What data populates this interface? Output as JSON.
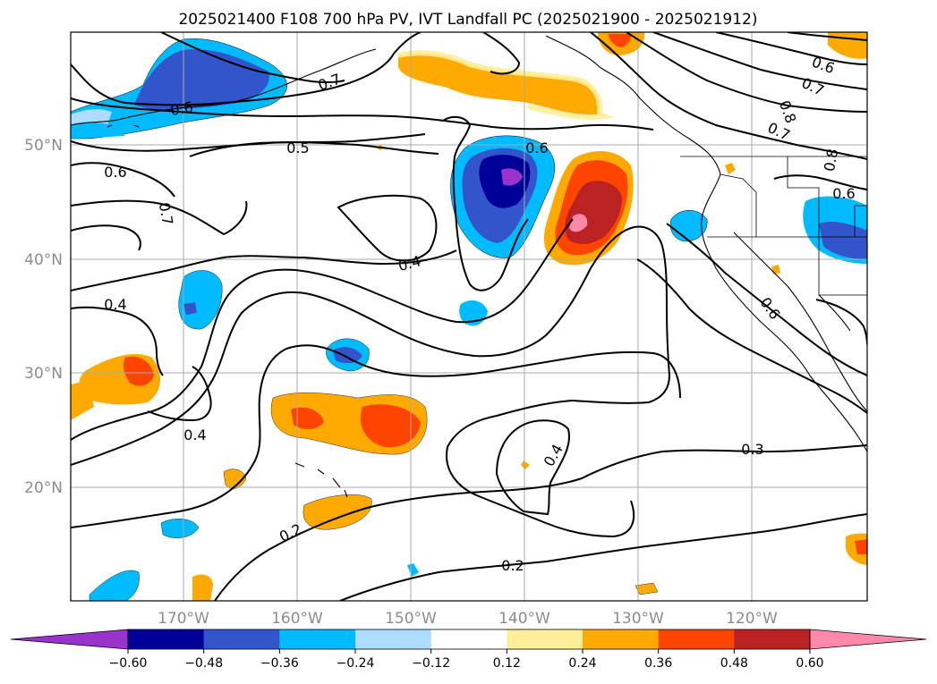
{
  "title": "2025021400 F108 700 hPa PV, IVT Landfall PC (2025021900 - 2025021912)",
  "lat_labels": [
    "50°N",
    "40°N",
    "30°N",
    "20°N"
  ],
  "lon_labels": [
    "170°W",
    "160°W",
    "150°W",
    "140°W",
    "130°W",
    "120°W"
  ],
  "contour_labels": [
    "0.6",
    "0.7",
    "0.5",
    "0.6",
    "0.6",
    "0.7",
    "0.6",
    "0.7",
    "0.8",
    "0.7",
    "0.8",
    "0.6",
    "0.4",
    "0.4",
    "0.6",
    "0.4",
    "0.4",
    "0.3",
    "0.2",
    "0.2"
  ],
  "colorbar": {
    "ticks": [
      "−0.60",
      "−0.48",
      "−0.36",
      "−0.24",
      "−0.12",
      "0.12",
      "0.24",
      "0.36",
      "0.48",
      "0.60"
    ],
    "colors": [
      "#9933cc",
      "#000099",
      "#3355cc",
      "#00bbff",
      "#aaddff",
      "#ffffff",
      "#ffee99",
      "#ffaa00",
      "#ff4400",
      "#bb2222",
      "#ff88aa"
    ]
  },
  "palette": {
    "neg_extreme": "#9933cc",
    "neg_4": "#000099",
    "neg_3": "#3355cc",
    "neg_2": "#00bbff",
    "neg_1": "#aaddff",
    "pos_1": "#ffee99",
    "pos_2": "#ffaa00",
    "pos_3": "#ff4400",
    "pos_4": "#bb2222",
    "pos_extreme": "#ff88aa"
  }
}
